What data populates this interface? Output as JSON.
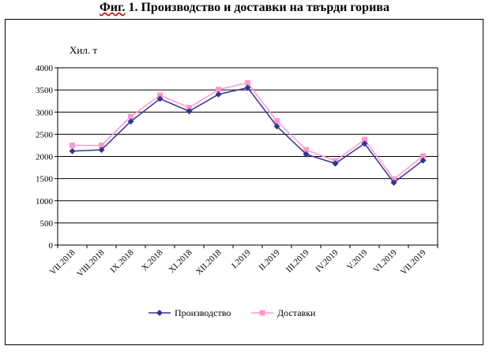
{
  "title_prefix": "Фиг.",
  "title_rest": " 1. Производство и доставки на твърди горива",
  "chart_data": {
    "type": "line",
    "title": "Фиг. 1. Производство и доставки на твърди горива",
    "ylabel": "Хил. т",
    "xlabel": "",
    "ylim": [
      0,
      4000
    ],
    "yticks": [
      0,
      500,
      1000,
      1500,
      2000,
      2500,
      3000,
      3500,
      4000
    ],
    "grid": true,
    "legend_position": "bottom",
    "categories": [
      "VII.2018",
      "VIII.2018",
      "IX.2018",
      "X.2018",
      "XI.2018",
      "XII.2018",
      "I.2019",
      "II.2019",
      "III.2019",
      "IV.2019",
      "V.2019",
      "VI.2019",
      "VII.2019"
    ],
    "series": [
      {
        "name": "Производство",
        "color": "#333399",
        "marker": "diamond",
        "values": [
          2120,
          2150,
          2790,
          3300,
          3020,
          3400,
          3550,
          2680,
          2050,
          1840,
          2290,
          1410,
          1910
        ]
      },
      {
        "name": "Доставки",
        "color": "#ff99cc",
        "marker": "square",
        "values": [
          2250,
          2250,
          2900,
          3380,
          3100,
          3510,
          3660,
          2800,
          2150,
          1900,
          2380,
          1490,
          2010
        ]
      }
    ]
  }
}
